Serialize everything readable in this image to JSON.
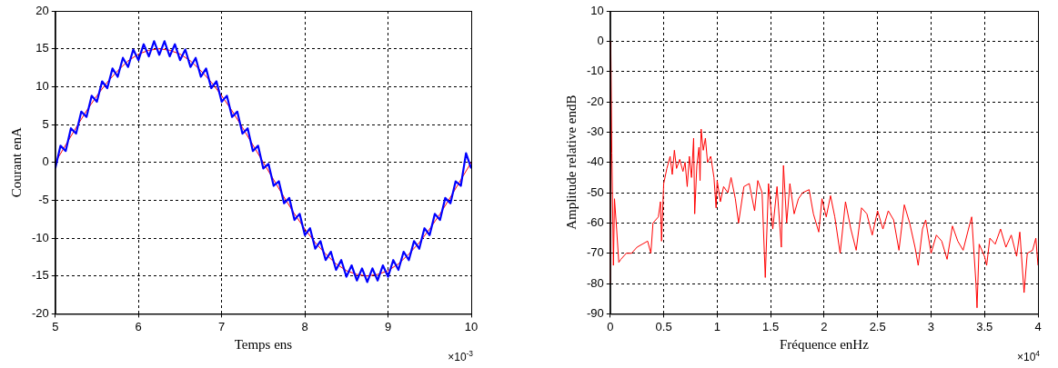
{
  "chart_data": [
    {
      "type": "line",
      "xlabel": "Temps ens",
      "ylabel": "Courant enA",
      "xlim": [
        5,
        10
      ],
      "xticks": [
        5,
        6,
        7,
        8,
        9,
        10
      ],
      "ylim": [
        -20,
        20
      ],
      "yticks": [
        -20,
        -15,
        -10,
        -5,
        0,
        5,
        10,
        15,
        20
      ],
      "grid": true,
      "annotations": [
        "×10$^{-3}$"
      ],
      "series": [
        {
          "color": "#0000ff",
          "x": [
            5,
            5.0625,
            5.125,
            5.1875,
            5.25,
            5.3125,
            5.375,
            5.4375,
            5.5,
            5.5625,
            5.625,
            5.6875,
            5.75,
            5.8125,
            5.875,
            5.9375,
            6,
            6.0625,
            6.125,
            6.1875,
            6.25,
            6.3125,
            6.375,
            6.4375,
            6.5,
            6.5625,
            6.625,
            6.6875,
            6.75,
            6.8125,
            6.875,
            6.9375,
            7,
            7.0625,
            7.125,
            7.1875,
            7.25,
            7.3125,
            7.375,
            7.4375,
            7.5,
            7.5625,
            7.625,
            7.6875,
            7.75,
            7.8125,
            7.875,
            7.9375,
            8,
            8.0625,
            8.125,
            8.1875,
            8.25,
            8.3125,
            8.375,
            8.4375,
            8.5,
            8.5625,
            8.625,
            8.6875,
            8.75,
            8.8125,
            8.875,
            8.9375,
            9,
            9.0625,
            9.125,
            9.1875,
            9.25,
            9.3125,
            9.375,
            9.4375,
            9.5,
            9.5625,
            9.625,
            9.6875,
            9.75,
            9.8125,
            9.875,
            9.9375,
            10
          ],
          "values": [
            -0.8,
            2.2,
            1.5,
            4.5,
            3.8,
            6.7,
            6.0,
            8.8,
            8.0,
            10.7,
            9.8,
            12.4,
            11.3,
            13.8,
            12.6,
            14.9,
            13.5,
            15.6,
            14.0,
            16.0,
            14.2,
            16.0,
            14.0,
            15.6,
            13.5,
            14.9,
            12.6,
            13.8,
            11.3,
            12.4,
            9.8,
            10.7,
            8.0,
            8.8,
            6.0,
            6.7,
            3.8,
            4.5,
            1.5,
            2.2,
            -0.8,
            -0.2,
            -3.1,
            -2.5,
            -5.4,
            -4.7,
            -7.6,
            -6.8,
            -9.6,
            -8.7,
            -11.4,
            -10.4,
            -12.9,
            -11.8,
            -14.2,
            -12.9,
            -15.1,
            -13.6,
            -15.6,
            -14.0,
            -15.8,
            -14.0,
            -15.6,
            -13.6,
            -15.1,
            -12.9,
            -14.2,
            -11.8,
            -12.9,
            -10.4,
            -11.4,
            -8.7,
            -9.6,
            -6.8,
            -7.6,
            -4.7,
            -5.4,
            -2.5,
            -3.1,
            1.2,
            -0.8
          ]
        },
        {
          "color": "#ff0000",
          "x": [
            5,
            5.125,
            5.25,
            5.375,
            5.5,
            5.625,
            5.75,
            5.875,
            6,
            6.125,
            6.25,
            6.375,
            6.5,
            6.625,
            6.75,
            6.875,
            7,
            7.125,
            7.25,
            7.375,
            7.5,
            7.625,
            7.75,
            7.875,
            8,
            8.125,
            8.25,
            8.375,
            8.5,
            8.625,
            8.75,
            8.875,
            9,
            9.125,
            9.25,
            9.375,
            9.5,
            9.625,
            9.75,
            9.875,
            10
          ],
          "values": [
            0,
            2.3,
            4.6,
            6.8,
            8.8,
            10.6,
            12.1,
            13.4,
            14.3,
            14.8,
            15,
            14.8,
            14.3,
            13.4,
            12.1,
            10.6,
            8.8,
            6.8,
            4.6,
            2.3,
            0,
            -2.3,
            -4.6,
            -6.8,
            -8.8,
            -10.6,
            -12.1,
            -13.4,
            -14.3,
            -14.8,
            -15,
            -14.8,
            -14.3,
            -13.4,
            -12.1,
            -10.6,
            -8.8,
            -6.8,
            -4.6,
            -2.3,
            0
          ]
        }
      ]
    },
    {
      "type": "line",
      "xlabel": "Fréquence enHz",
      "ylabel": "Amplitude relative endB",
      "xlim": [
        0,
        4
      ],
      "xticks": [
        0,
        0.5,
        1,
        1.5,
        2,
        2.5,
        3,
        3.5,
        4
      ],
      "ylim": [
        -90,
        10
      ],
      "yticks": [
        -90,
        -80,
        -70,
        -60,
        -50,
        -40,
        -30,
        -20,
        -10,
        0,
        10
      ],
      "grid": true,
      "annotations": [
        "×10$^{4}$"
      ],
      "color": "#ff0000",
      "x": [
        0,
        0.005,
        0.015,
        0.03,
        0.04,
        0.06,
        0.08,
        0.1,
        0.15,
        0.2,
        0.25,
        0.3,
        0.35,
        0.38,
        0.4,
        0.45,
        0.47,
        0.48,
        0.5,
        0.53,
        0.56,
        0.58,
        0.6,
        0.62,
        0.65,
        0.68,
        0.7,
        0.72,
        0.74,
        0.76,
        0.78,
        0.79,
        0.81,
        0.83,
        0.84,
        0.85,
        0.87,
        0.89,
        0.91,
        0.94,
        0.97,
        0.99,
        1.0,
        1.03,
        1.06,
        1.1,
        1.13,
        1.17,
        1.2,
        1.25,
        1.3,
        1.35,
        1.38,
        1.42,
        1.45,
        1.48,
        1.52,
        1.56,
        1.6,
        1.62,
        1.65,
        1.68,
        1.72,
        1.76,
        1.8,
        1.86,
        1.9,
        1.95,
        1.98,
        2.02,
        2.06,
        2.1,
        2.15,
        2.2,
        2.25,
        2.3,
        2.35,
        2.4,
        2.45,
        2.5,
        2.55,
        2.6,
        2.65,
        2.7,
        2.75,
        2.8,
        2.85,
        2.88,
        2.92,
        2.95,
        3.0,
        3.05,
        3.1,
        3.15,
        3.2,
        3.25,
        3.3,
        3.35,
        3.38,
        3.42,
        3.43,
        3.45,
        3.5,
        3.52,
        3.55,
        3.6,
        3.65,
        3.7,
        3.75,
        3.8,
        3.83,
        3.87,
        3.9,
        3.95,
        3.98,
        4.0
      ],
      "values": [
        -80,
        0,
        -37,
        -74,
        -52,
        -62,
        -73,
        -72,
        -70,
        -70,
        -68,
        -67,
        -66,
        -70,
        -60,
        -58,
        -53,
        -66,
        -47,
        -42,
        -38,
        -44,
        -36,
        -42,
        -39,
        -43,
        -40,
        -48,
        -38,
        -45,
        -32,
        -57,
        -41,
        -35,
        -46,
        -29,
        -36,
        -32,
        -40,
        -38,
        -45,
        -55,
        -46,
        -53,
        -48,
        -50,
        -45,
        -52,
        -60,
        -48,
        -47,
        -56,
        -46,
        -50,
        -78,
        -47,
        -62,
        -48,
        -68,
        -41,
        -60,
        -47,
        -57,
        -52,
        -50,
        -49,
        -57,
        -63,
        -52,
        -58,
        -51,
        -58,
        -70,
        -53,
        -62,
        -69,
        -55,
        -57,
        -64,
        -56,
        -62,
        -56,
        -59,
        -69,
        -54,
        -60,
        -68,
        -74,
        -62,
        -59,
        -70,
        -64,
        -66,
        -72,
        -61,
        -66,
        -69,
        -62,
        -58,
        -80,
        -88,
        -67,
        -71,
        -74,
        -65,
        -67,
        -62,
        -68,
        -64,
        -71,
        -63,
        -83,
        -70,
        -69,
        -65,
        -74
      ]
    }
  ]
}
